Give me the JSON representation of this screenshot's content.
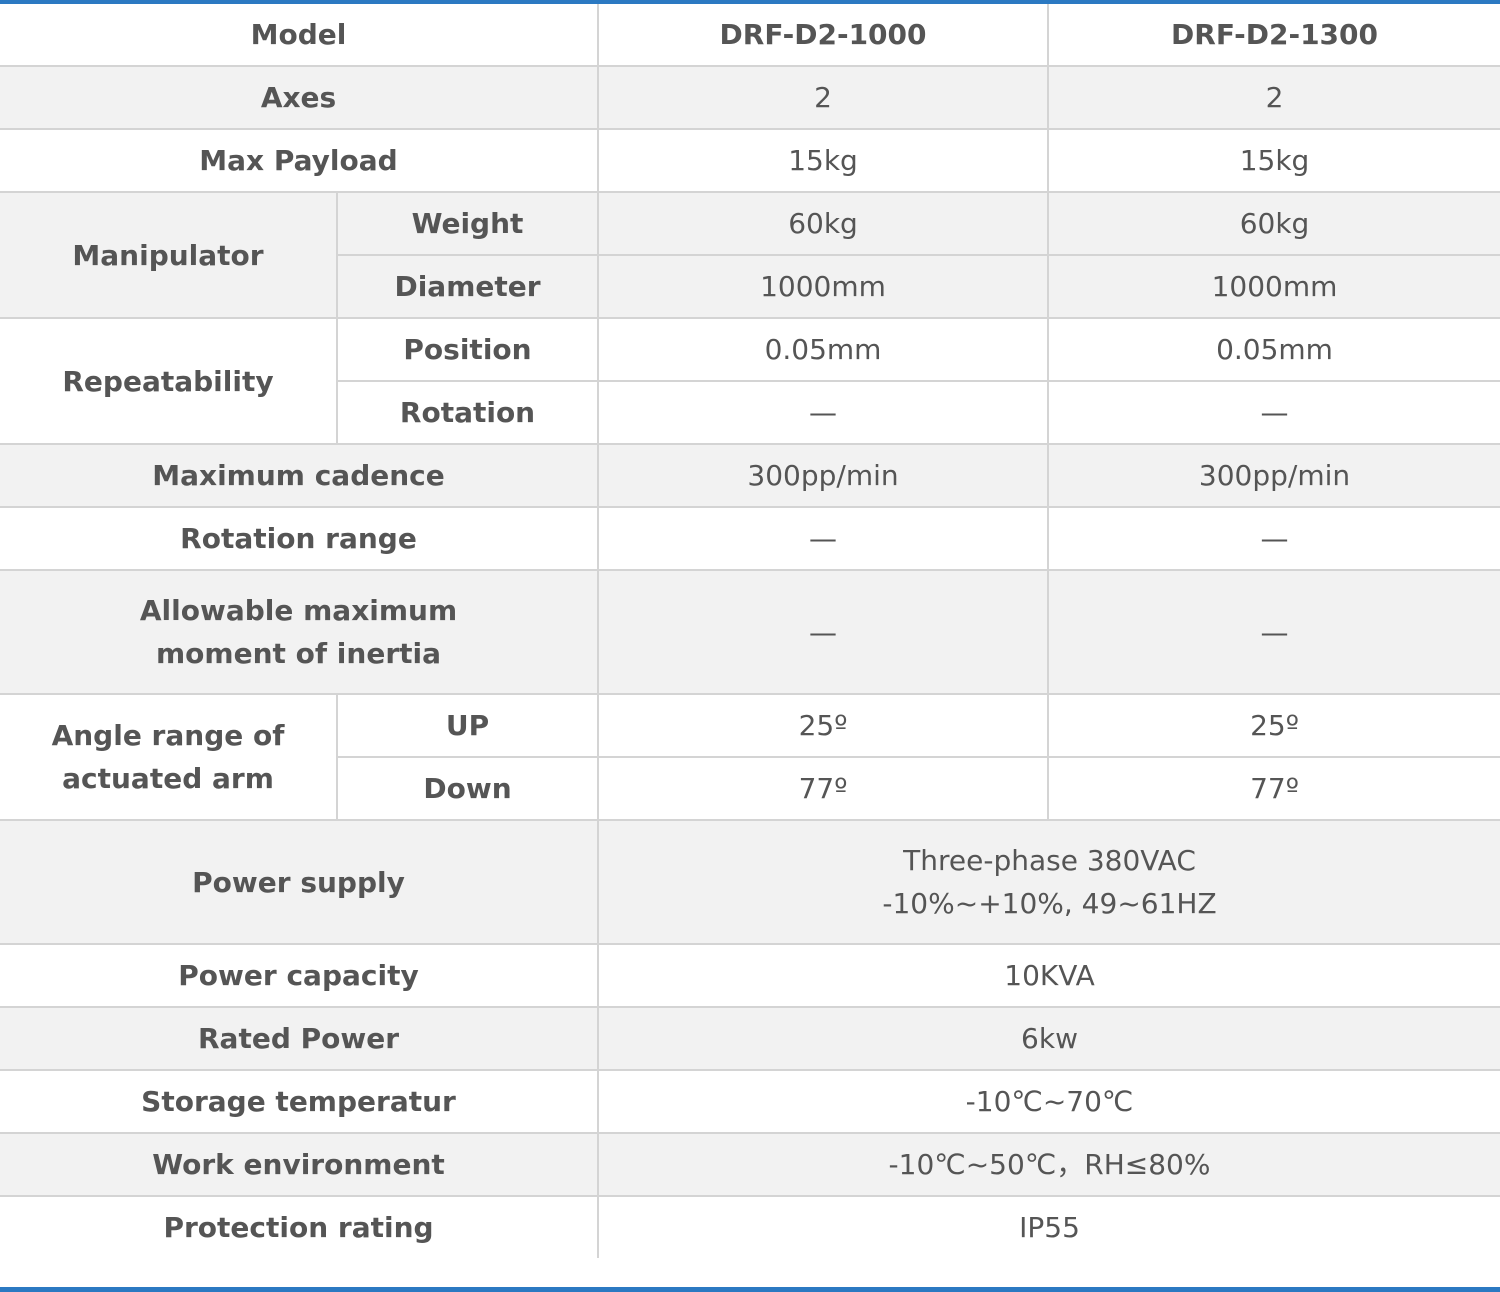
{
  "header": {
    "model_label": "Model",
    "models": [
      "DRF-D2-1000",
      "DRF-D2-1300"
    ]
  },
  "rows": {
    "axes": {
      "label": "Axes",
      "values": [
        "2",
        "2"
      ]
    },
    "max_payload": {
      "label": "Max Payload",
      "values": [
        "15kg",
        "15kg"
      ]
    },
    "manipulator": {
      "label": "Manipulator",
      "weight": {
        "label": "Weight",
        "values": [
          "60kg",
          "60kg"
        ]
      },
      "diameter": {
        "label": "Diameter",
        "values": [
          "1000mm",
          "1000mm"
        ]
      }
    },
    "repeatability": {
      "label": "Repeatability",
      "position": {
        "label": "Position",
        "values": [
          "0.05mm",
          "0.05mm"
        ]
      },
      "rotation": {
        "label": "Rotation",
        "values": [
          "—",
          "—"
        ]
      }
    },
    "max_cadence": {
      "label": "Maximum cadence",
      "values": [
        "300pp/min",
        "300pp/min"
      ]
    },
    "rotation_range": {
      "label": "Rotation range",
      "values": [
        "—",
        "—"
      ]
    },
    "moment_inertia": {
      "label": "Allowable maximum\nmoment of inertia",
      "values": [
        "—",
        "—"
      ]
    },
    "angle_range": {
      "label": "Angle range of\nactuated arm",
      "up": {
        "label": "UP",
        "values": [
          "25º",
          "25º"
        ]
      },
      "down": {
        "label": "Down",
        "values": [
          "77º",
          "77º"
        ]
      }
    },
    "power_supply": {
      "label": "Power supply",
      "value": "Three-phase 380VAC\n-10%~+10%, 49~61HZ"
    },
    "power_capacity": {
      "label": "Power capacity",
      "value": "10KVA"
    },
    "rated_power": {
      "label": "Rated Power",
      "value": "6kw"
    },
    "storage_temp": {
      "label": "Storage temperatur",
      "value": "-10℃~70℃"
    },
    "work_env": {
      "label": "Work environment",
      "value": "-10℃~50℃，RH≤80%"
    },
    "protection": {
      "label": "Protection rating",
      "value": "IP55"
    }
  }
}
